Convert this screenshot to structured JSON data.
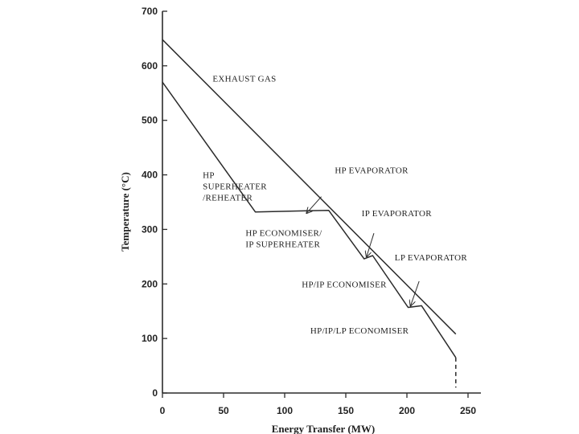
{
  "chart_data": {
    "type": "line",
    "xlabel": "Energy Transfer (MW)",
    "ylabel": "Temperature (°C)",
    "xlim": [
      0,
      250
    ],
    "ylim": [
      0,
      700
    ],
    "xticks": [
      0,
      50,
      100,
      150,
      200,
      250
    ],
    "yticks": [
      0,
      100,
      200,
      300,
      400,
      500,
      600,
      700
    ],
    "grid": false,
    "series": [
      {
        "name": "EXHAUST GAS",
        "style": "solid",
        "points": [
          [
            0,
            648
          ],
          [
            240,
            108
          ]
        ]
      },
      {
        "name": "",
        "style": "solid",
        "points": [
          [
            0,
            570
          ],
          [
            76,
            332
          ],
          [
            136,
            335
          ],
          [
            165,
            246
          ],
          [
            172,
            252
          ],
          [
            201,
            157
          ],
          [
            212,
            160
          ],
          [
            240,
            65
          ]
        ]
      },
      {
        "name": "",
        "style": "dashed",
        "points": [
          [
            240,
            65
          ],
          [
            240,
            10
          ]
        ]
      }
    ],
    "annotations": [
      {
        "label_lines": [
          "HP",
          "SUPERHEATER",
          "/REHEATER"
        ],
        "text_at": [
          33,
          394
        ]
      },
      {
        "label_lines": [
          "HP EVAPORATOR"
        ],
        "text_at": [
          141,
          403
        ],
        "arrow_from": [
          130,
          360
        ],
        "arrow_to": [
          118,
          330
        ]
      },
      {
        "label_lines": [
          "HP ECONOMISER/",
          "IP SUPERHEATER"
        ],
        "text_at": [
          68,
          288
        ]
      },
      {
        "label_lines": [
          "IP EVAPORATOR"
        ],
        "text_at": [
          163,
          324
        ],
        "arrow_from": [
          173,
          293
        ],
        "arrow_to": [
          167,
          250
        ]
      },
      {
        "label_lines": [
          "HP/IP ECONOMISER"
        ],
        "text_at": [
          114,
          194
        ]
      },
      {
        "label_lines": [
          "LP EVAPORATOR"
        ],
        "text_at": [
          190,
          243
        ],
        "arrow_from": [
          210,
          205
        ],
        "arrow_to": [
          203,
          160
        ]
      },
      {
        "label_lines": [
          "HP/IP/LP ECONOMISER"
        ],
        "text_at": [
          121,
          109
        ]
      },
      {
        "label_lines": [
          "EXHAUST GAS"
        ],
        "text_at": [
          41,
          571
        ]
      }
    ],
    "colors": {
      "line": "#2b2b2b",
      "background": "#ffffff"
    }
  }
}
